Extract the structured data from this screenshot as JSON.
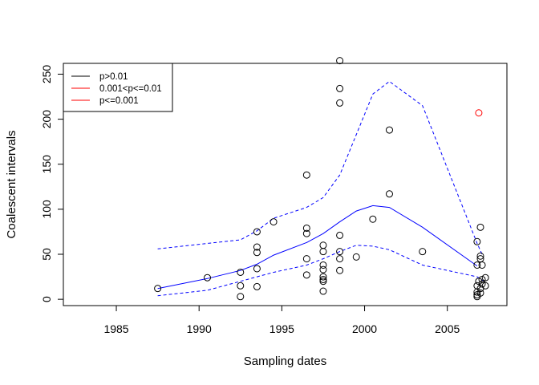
{
  "chart_data": {
    "type": "scatter",
    "xlabel": "Sampling dates",
    "ylabel": "Coalescent intervals",
    "xlim": [
      1981.8,
      2008.6
    ],
    "ylim": [
      -7,
      262
    ],
    "xticks": [
      1985,
      1990,
      1995,
      2000,
      2005
    ],
    "yticks": [
      0,
      50,
      100,
      150,
      200,
      250
    ],
    "legend": {
      "position": "top-left",
      "entries": [
        {
          "label": "p>0.01",
          "color": "#000000"
        },
        {
          "label": "0.001<p<=0.01",
          "color": "#ff0000"
        },
        {
          "label": "p<=0.001",
          "color": "#ff0000"
        }
      ]
    },
    "points_black": [
      [
        1987.5,
        12
      ],
      [
        1990.5,
        24
      ],
      [
        1992.5,
        30
      ],
      [
        1992.5,
        15
      ],
      [
        1992.5,
        3
      ],
      [
        1993.5,
        75
      ],
      [
        1993.5,
        58
      ],
      [
        1993.5,
        52
      ],
      [
        1993.5,
        34
      ],
      [
        1993.5,
        14
      ],
      [
        1994.5,
        86
      ],
      [
        1996.5,
        138
      ],
      [
        1996.5,
        79
      ],
      [
        1996.5,
        73
      ],
      [
        1996.5,
        45
      ],
      [
        1996.5,
        27
      ],
      [
        1997.5,
        60
      ],
      [
        1997.5,
        53
      ],
      [
        1997.5,
        38
      ],
      [
        1997.5,
        33
      ],
      [
        1997.5,
        25
      ],
      [
        1997.5,
        22
      ],
      [
        1997.5,
        20
      ],
      [
        1997.5,
        9
      ],
      [
        1998.5,
        265
      ],
      [
        1998.5,
        234
      ],
      [
        1998.5,
        218
      ],
      [
        1998.5,
        71
      ],
      [
        1998.5,
        53
      ],
      [
        1998.5,
        45
      ],
      [
        1998.5,
        32
      ],
      [
        1999.5,
        47
      ],
      [
        2000.5,
        89
      ],
      [
        2001.5,
        188
      ],
      [
        2001.5,
        117
      ],
      [
        2003.5,
        53
      ],
      [
        2006.8,
        64
      ],
      [
        2006.8,
        38
      ],
      [
        2006.9,
        20
      ],
      [
        2006.8,
        15
      ],
      [
        2006.8,
        8
      ],
      [
        2006.8,
        5
      ],
      [
        2006.8,
        3
      ],
      [
        2007.0,
        80
      ],
      [
        2007.0,
        48
      ],
      [
        2007.0,
        45
      ],
      [
        2007.1,
        38
      ],
      [
        2007.1,
        22
      ],
      [
        2007.1,
        17
      ],
      [
        2007.0,
        12
      ],
      [
        2007.0,
        7
      ],
      [
        2007.3,
        24
      ],
      [
        2007.3,
        15
      ]
    ],
    "points_red": [
      [
        2006.9,
        207
      ]
    ],
    "series": [
      {
        "style": "solid",
        "color": "#0000ff",
        "x": [
          1987.5,
          1990.5,
          1992.5,
          1993.5,
          1994.5,
          1996.5,
          1997.5,
          1998.5,
          1999.5,
          2000.5,
          2001.5,
          2003.5,
          2006.8
        ],
        "y": [
          12,
          23,
          32,
          39,
          49,
          63,
          73,
          86,
          98,
          104,
          102,
          80,
          37
        ]
      },
      {
        "style": "dashed",
        "color": "#0000ff",
        "x": [
          1987.5,
          1990.5,
          1992.5,
          1993.5,
          1994.5,
          1996.5,
          1997.5,
          1998.5,
          2000.5,
          2001.5,
          2003.5,
          2006.8,
          2007.1
        ],
        "y": [
          56,
          62,
          66,
          76,
          90,
          102,
          113,
          138,
          228,
          242,
          215,
          62,
          50
        ]
      },
      {
        "style": "dashed",
        "color": "#0000ff",
        "x": [
          1987.5,
          1990.5,
          1992.5,
          1993.5,
          1994.5,
          1996.5,
          1997.5,
          1998.5,
          1999.5,
          2000.5,
          2001.5,
          2003.5,
          2006.8,
          2007.2
        ],
        "y": [
          4,
          10,
          20,
          25,
          30,
          38,
          45,
          53,
          60,
          59,
          55,
          38,
          25,
          20
        ]
      }
    ]
  }
}
